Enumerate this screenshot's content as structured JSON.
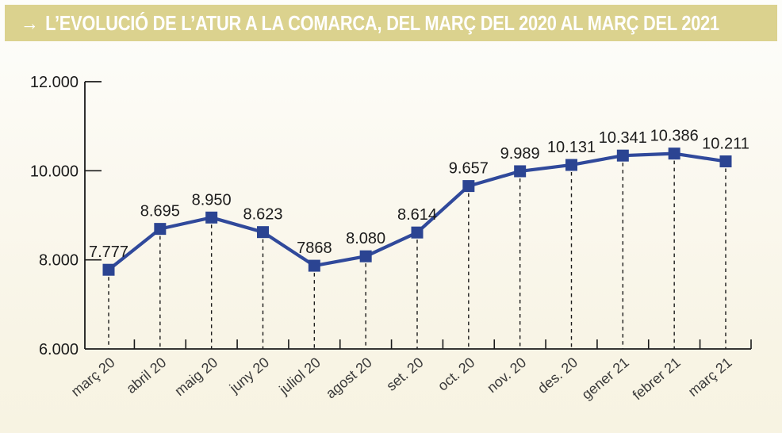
{
  "header": {
    "arrow": "→",
    "title": "L’EVOLUCIÓ DE L’ATUR A LA COMARCA, DEL MARÇ DEL 2020 AL MARÇ DEL 2021",
    "bg_color": "#dbd28e",
    "text_color": "#ffffff"
  },
  "chart_data": {
    "type": "line",
    "title": "L’EVOLUCIÓ DE L’ATUR A LA COMARCA, DEL MARÇ DEL 2020 AL MARÇ DEL 2021",
    "categories": [
      "març 20",
      "abril 20",
      "maig 20",
      "juny 20",
      "juliol 20",
      "agost 20",
      "set. 20",
      "oct. 20",
      "nov. 20",
      "des. 20",
      "gener 21",
      "febrer 21",
      "març 21"
    ],
    "values": [
      7777,
      8695,
      8950,
      8623,
      7868,
      8080,
      8614,
      9657,
      9989,
      10131,
      10341,
      10386,
      10211
    ],
    "point_labels": [
      "7.777",
      "8.695",
      "8.950",
      "8.623",
      "7868",
      "8.080",
      "8.614",
      "9.657",
      "9.989",
      "10.131",
      "10.341",
      "10.386",
      "10.211"
    ],
    "yticks": [
      {
        "value": 12000,
        "label": "12.000"
      },
      {
        "value": 10000,
        "label": "10.000"
      },
      {
        "value": 8000,
        "label": "8.000"
      },
      {
        "value": 6000,
        "label": "6.000"
      }
    ],
    "ylim": [
      6000,
      12000
    ],
    "xlabel": "",
    "ylabel": "",
    "grid": false,
    "legend": "none",
    "marker": "square",
    "line_color": "#30499b",
    "marker_color": "#2b4492",
    "axis_color": "#1a1a1a",
    "droplines": "dashed"
  }
}
